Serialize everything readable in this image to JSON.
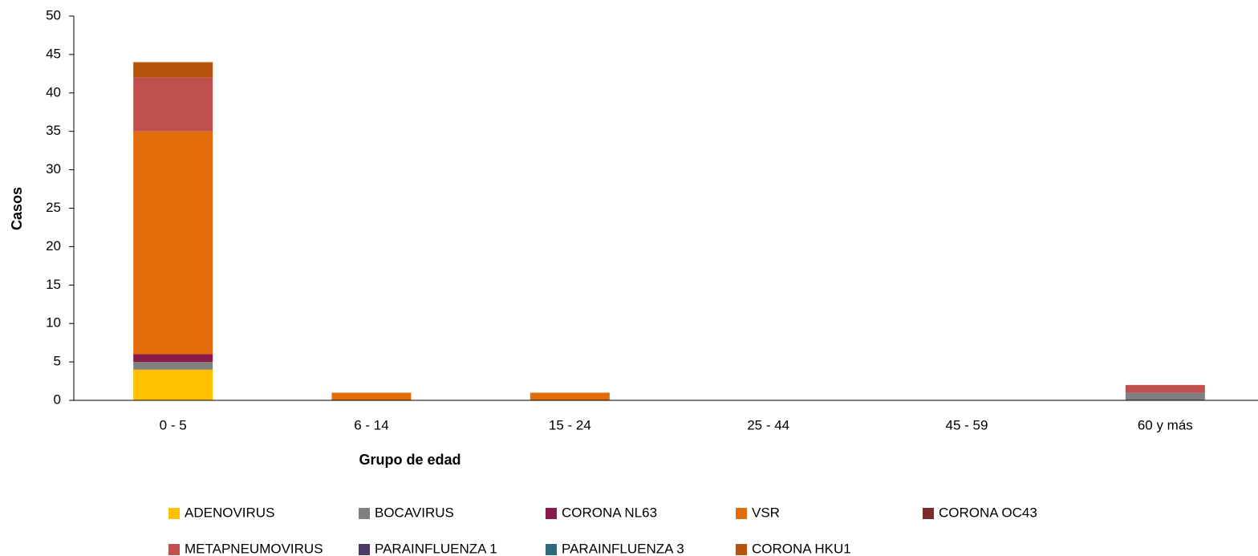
{
  "chart_data": {
    "type": "stacked_bar",
    "xlabel": "Grupo de edad",
    "ylabel": "Casos",
    "categories": [
      "0 - 5",
      "6 - 14",
      "15 - 24",
      "25 - 44",
      "45 - 59",
      "60 y más"
    ],
    "series": [
      {
        "name": "ADENOVIRUS",
        "color": "#ffc000",
        "values": [
          4,
          0,
          0,
          0,
          0,
          0
        ]
      },
      {
        "name": "BOCAVIRUS",
        "color": "#808080",
        "values": [
          1,
          0,
          0,
          0,
          0,
          1
        ]
      },
      {
        "name": "CORONA NL63",
        "color": "#8b1a4a",
        "values": [
          1,
          0,
          0,
          0,
          0,
          0
        ]
      },
      {
        "name": "VSR",
        "color": "#e36c0a",
        "values": [
          29,
          1,
          1,
          0,
          0,
          0
        ]
      },
      {
        "name": "CORONA OC43",
        "color": "#7a2a2a",
        "values": [
          0,
          0,
          0,
          0,
          0,
          0
        ]
      },
      {
        "name": "METAPNEUMOVIRUS",
        "color": "#c0504d",
        "values": [
          7,
          0,
          0,
          0,
          0,
          1
        ]
      },
      {
        "name": "PARAINFLUENZA 1",
        "color": "#4b3a66",
        "values": [
          0,
          0,
          0,
          0,
          0,
          0
        ]
      },
      {
        "name": "PARAINFLUENZA 3",
        "color": "#2e6b7a",
        "values": [
          0,
          0,
          0,
          0,
          0,
          0
        ]
      },
      {
        "name": "CORONA HKU1",
        "color": "#b45309",
        "values": [
          2,
          0,
          0,
          0,
          0,
          0
        ]
      }
    ],
    "ylim": [
      0,
      50
    ],
    "yticks": [
      0,
      5,
      10,
      15,
      20,
      25,
      30,
      35,
      40,
      45,
      50
    ]
  }
}
